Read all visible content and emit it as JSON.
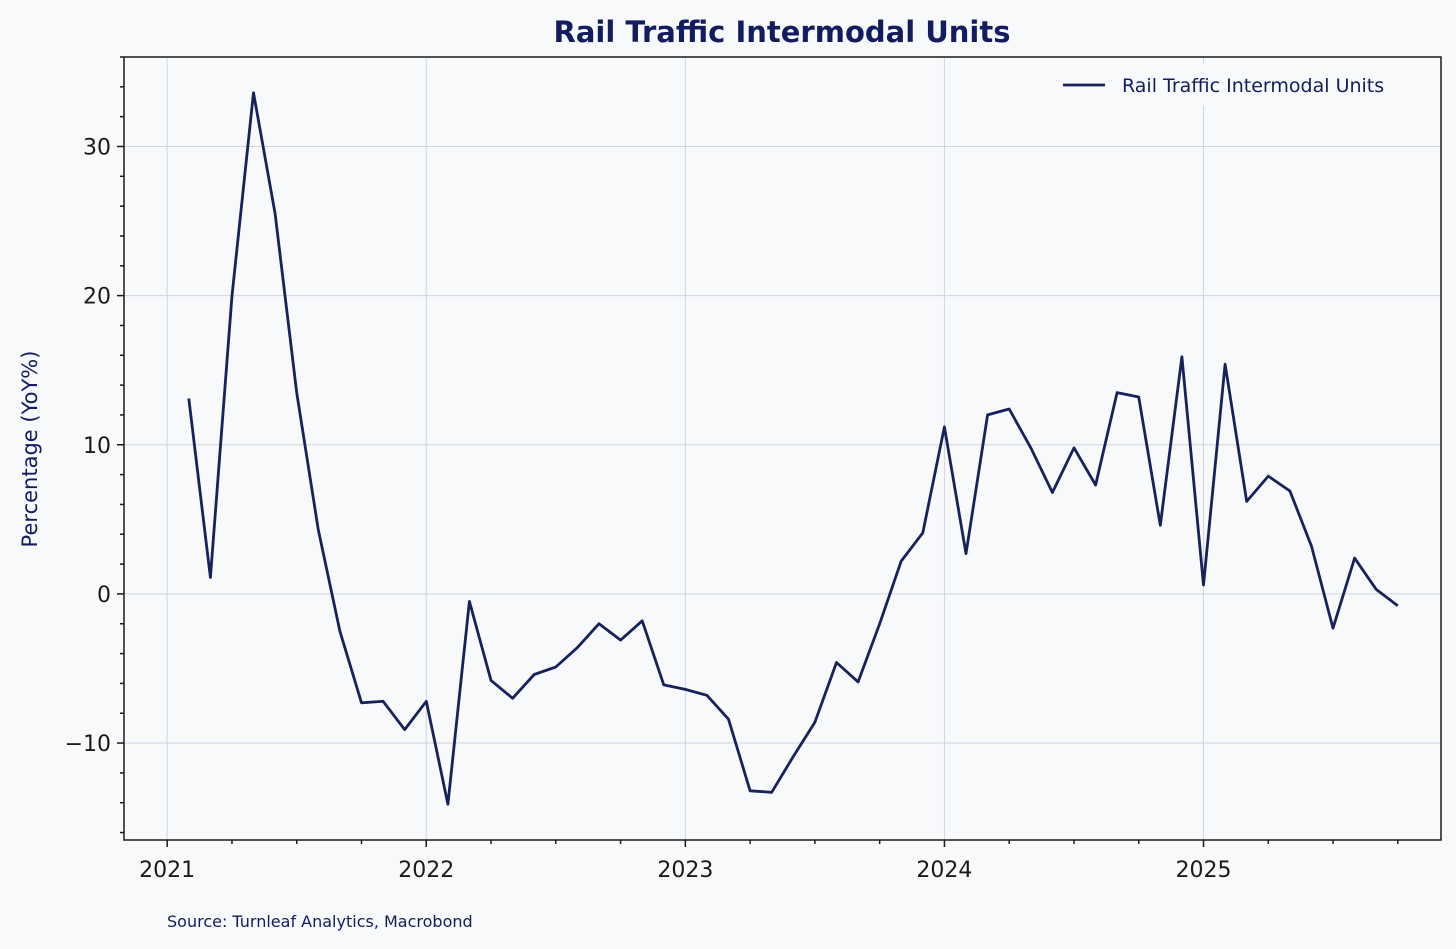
{
  "chart_data": {
    "type": "line",
    "title": "Rail Traffic Intermodal Units",
    "xlabel": "",
    "ylabel": "Percentage (YoY%)",
    "source": "Source: Turnleaf Analytics, Macrobond",
    "legend_position": "top-right",
    "grid": true,
    "xlim": [
      "2020-11",
      "2025-12"
    ],
    "ylim": [
      -16.5,
      36
    ],
    "x_ticks": [
      "2021",
      "2022",
      "2023",
      "2024",
      "2025"
    ],
    "y_ticks": [
      -10,
      0,
      10,
      20,
      30
    ],
    "y_tick_labels": [
      "−10",
      "0",
      "10",
      "20",
      "30"
    ],
    "colors": {
      "line": "#17225a",
      "background": "#f7f9fb",
      "title": "#131c5e"
    },
    "series": [
      {
        "name": "Rail Traffic Intermodal Units",
        "x": [
          "2021-02",
          "2021-03",
          "2021-04",
          "2021-05",
          "2021-06",
          "2021-07",
          "2021-08",
          "2021-09",
          "2021-10",
          "2021-11",
          "2021-12",
          "2022-01",
          "2022-02",
          "2022-03",
          "2022-04",
          "2022-05",
          "2022-06",
          "2022-07",
          "2022-08",
          "2022-09",
          "2022-10",
          "2022-11",
          "2022-12",
          "2023-01",
          "2023-02",
          "2023-03",
          "2023-04",
          "2023-05",
          "2023-06",
          "2023-07",
          "2023-08",
          "2023-09",
          "2023-10",
          "2023-11",
          "2023-12",
          "2024-01",
          "2024-02",
          "2024-03",
          "2024-04",
          "2024-05",
          "2024-06",
          "2024-07",
          "2024-08",
          "2024-09",
          "2024-10",
          "2024-11",
          "2024-12",
          "2025-01",
          "2025-02",
          "2025-03",
          "2025-04",
          "2025-05",
          "2025-06",
          "2025-07",
          "2025-08",
          "2025-09",
          "2025-10"
        ],
        "values": [
          13.1,
          1.1,
          20.0,
          33.6,
          25.5,
          13.5,
          4.3,
          -2.5,
          -7.3,
          -7.2,
          -9.1,
          -7.2,
          -14.1,
          -0.5,
          -5.8,
          -7.0,
          -5.4,
          -4.9,
          -3.6,
          -2.0,
          -3.1,
          -1.8,
          -6.1,
          -6.4,
          -6.8,
          -8.4,
          -13.2,
          -13.3,
          -10.9,
          -8.6,
          -4.6,
          -5.9,
          -2.0,
          2.2,
          4.1,
          11.2,
          2.7,
          12.0,
          12.4,
          9.8,
          6.8,
          9.8,
          7.3,
          13.5,
          13.2,
          4.6,
          15.9,
          0.6,
          15.4,
          6.2,
          7.9,
          6.9,
          3.2,
          -2.3,
          2.4,
          0.3,
          -0.8
        ]
      }
    ]
  }
}
